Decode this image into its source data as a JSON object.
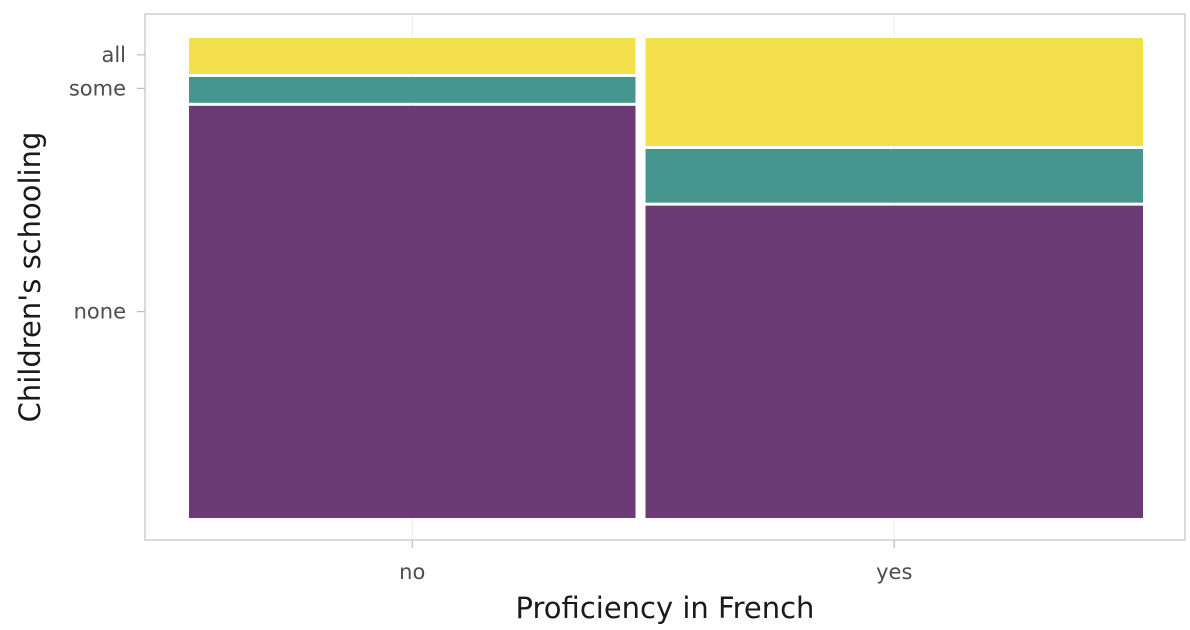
{
  "chart_data": {
    "type": "mosaic",
    "xlabel": "Proficiency in French",
    "ylabel": "Children's schooling",
    "categories": [
      "no",
      "yes"
    ],
    "column_widths": [
      0.473,
      0.527
    ],
    "levels": [
      "none",
      "some",
      "all"
    ],
    "y_tick_labels": [
      "all",
      "some",
      "none"
    ],
    "series": [
      {
        "name": "none",
        "values": [
          0.865,
          0.657
        ]
      },
      {
        "name": "some",
        "values": [
          0.06,
          0.118
        ]
      },
      {
        "name": "all",
        "values": [
          0.075,
          0.225
        ]
      }
    ],
    "colors": {
      "none": "#6c3b75",
      "some": "#45968f",
      "all": "#f4e04d"
    },
    "legend": "none",
    "grid": true,
    "ylim": [
      0,
      1
    ]
  }
}
